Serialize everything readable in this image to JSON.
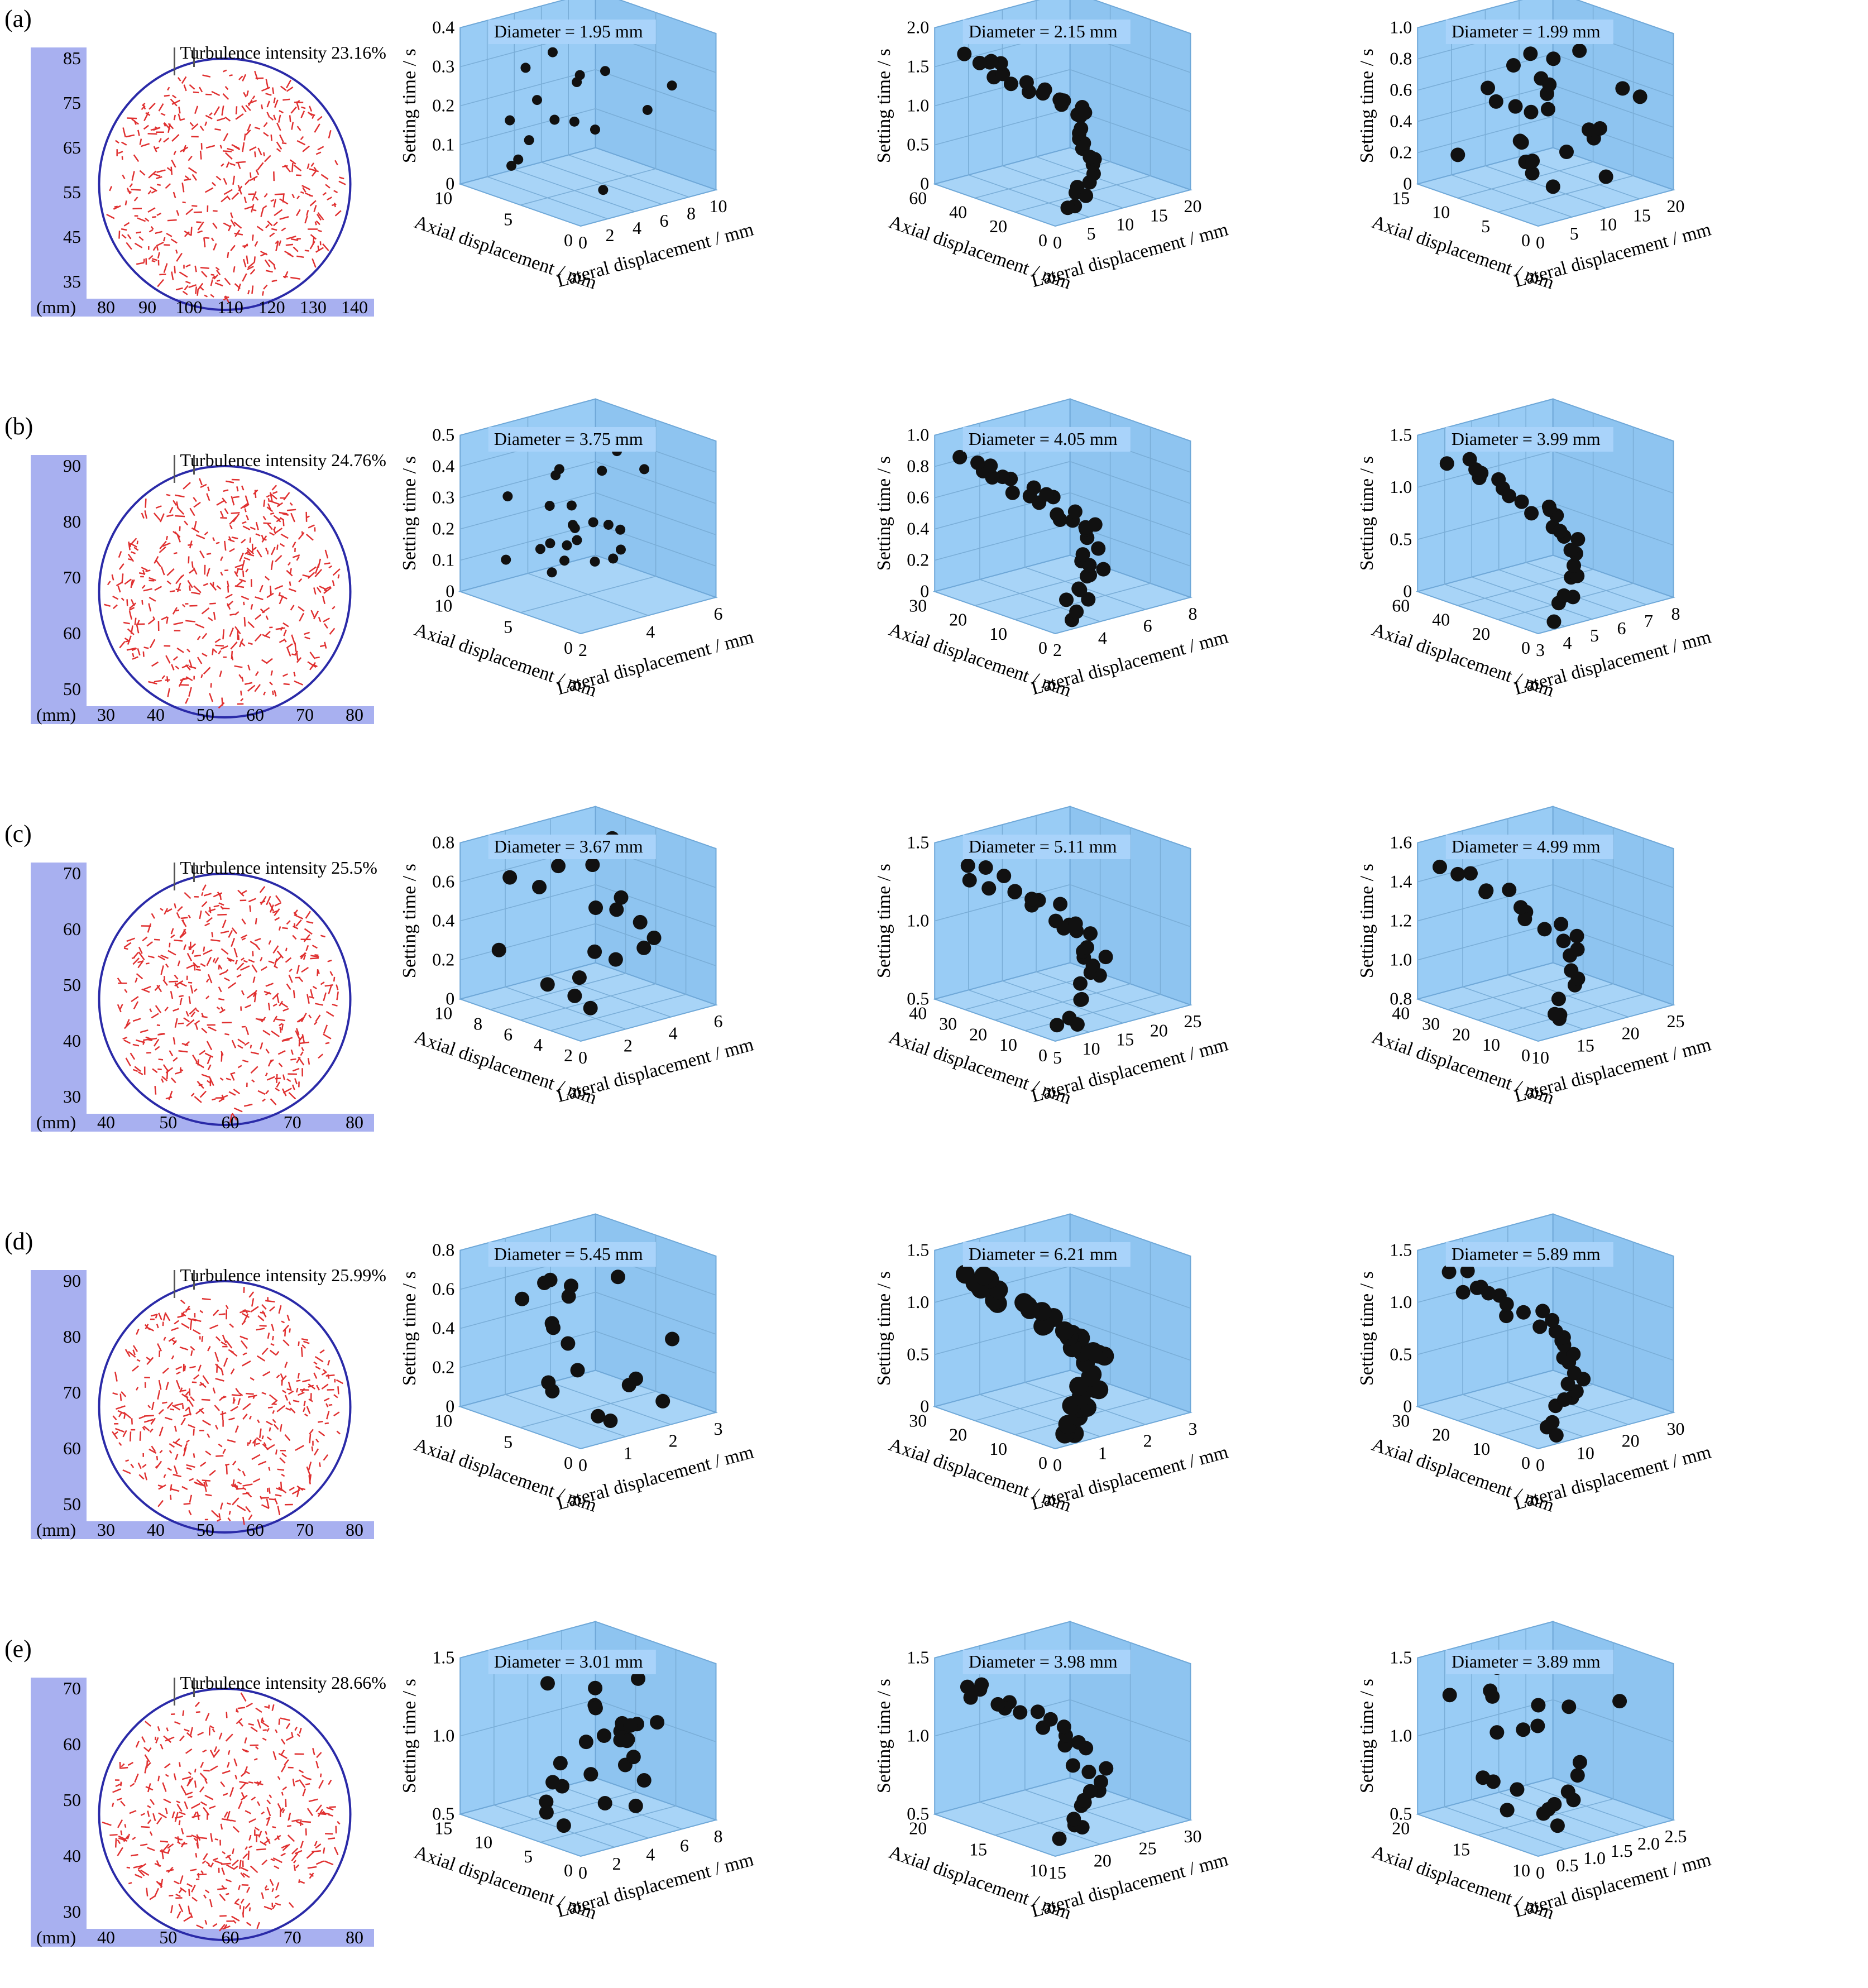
{
  "rows": [
    {
      "label": "(a)",
      "flow_map": {
        "turbulence_label": "Turbulence intensity 23.16%",
        "unit": "(mm)",
        "x_ticks": [
          "80",
          "90",
          "100",
          "110",
          "120",
          "130",
          "140"
        ],
        "y_ticks": [
          "85",
          "75",
          "65",
          "55",
          "45",
          "35"
        ],
        "vector_color": "#e03030",
        "seed": 11
      },
      "plots": [
        {
          "diameter_label": "Diameter = 1.95 mm",
          "z_ticks": [
            "0",
            "0.1",
            "0.2",
            "0.3",
            "0.4"
          ],
          "axial_ticks": [
            "0",
            "5",
            "10"
          ],
          "lateral_ticks": [
            "0",
            "2",
            "4",
            "6",
            "8",
            "10"
          ],
          "point_count": 16,
          "point_size": "small",
          "pattern": "scatter",
          "seed": 101
        },
        {
          "diameter_label": "Diameter = 2.15 mm",
          "z_ticks": [
            "0",
            "0.5",
            "1.0",
            "1.5",
            "2.0"
          ],
          "axial_ticks": [
            "0",
            "20",
            "40",
            "60"
          ],
          "lateral_ticks": [
            "0",
            "5",
            "10",
            "15",
            "20"
          ],
          "point_count": 34,
          "point_size": "medium",
          "pattern": "chain",
          "seed": 102
        },
        {
          "diameter_label": "Diameter = 1.99 mm",
          "z_ticks": [
            "0",
            "0.2",
            "0.4",
            "0.6",
            "0.8",
            "1.0"
          ],
          "axial_ticks": [
            "0",
            "5",
            "10",
            "15"
          ],
          "lateral_ticks": [
            "0",
            "5",
            "10",
            "15",
            "20"
          ],
          "point_count": 28,
          "point_size": "medium",
          "pattern": "scatter",
          "seed": 103
        }
      ]
    },
    {
      "label": "(b)",
      "flow_map": {
        "turbulence_label": "Turbulence intensity 24.76%",
        "unit": "(mm)",
        "x_ticks": [
          "30",
          "40",
          "50",
          "60",
          "70",
          "80"
        ],
        "y_ticks": [
          "90",
          "80",
          "70",
          "60",
          "50"
        ],
        "vector_color": "#e03030",
        "seed": 12
      },
      "plots": [
        {
          "diameter_label": "Diameter = 3.75 mm",
          "z_ticks": [
            "0",
            "0.1",
            "0.2",
            "0.3",
            "0.4",
            "0.5"
          ],
          "axial_ticks": [
            "0",
            "5",
            "10"
          ],
          "lateral_ticks": [
            "2",
            "4",
            "6"
          ],
          "point_count": 24,
          "point_size": "small",
          "pattern": "scatter",
          "seed": 201
        },
        {
          "diameter_label": "Diameter = 4.05 mm",
          "z_ticks": [
            "0",
            "0.2",
            "0.4",
            "0.6",
            "0.8",
            "1.0"
          ],
          "axial_ticks": [
            "0",
            "10",
            "20",
            "30"
          ],
          "lateral_ticks": [
            "2",
            "4",
            "6",
            "8"
          ],
          "point_count": 34,
          "point_size": "medium",
          "pattern": "chain",
          "seed": 202
        },
        {
          "diameter_label": "Diameter = 3.99 mm",
          "z_ticks": [
            "0",
            "0.5",
            "1.0",
            "1.5"
          ],
          "axial_ticks": [
            "0",
            "20",
            "40",
            "60"
          ],
          "lateral_ticks": [
            "3",
            "4",
            "5",
            "6",
            "7",
            "8"
          ],
          "point_count": 26,
          "point_size": "medium",
          "pattern": "chain",
          "seed": 203
        }
      ]
    },
    {
      "label": "(c)",
      "flow_map": {
        "turbulence_label": "Turbulence intensity 25.5%",
        "unit": "(mm)",
        "x_ticks": [
          "40",
          "50",
          "60",
          "70",
          "80"
        ],
        "y_ticks": [
          "70",
          "60",
          "50",
          "40",
          "30"
        ],
        "vector_color": "#e03030",
        "seed": 13
      },
      "plots": [
        {
          "diameter_label": "Diameter = 3.67 mm",
          "z_ticks": [
            "0",
            "0.2",
            "0.4",
            "0.6",
            "0.8"
          ],
          "axial_ticks": [
            "2",
            "4",
            "6",
            "8",
            "10"
          ],
          "lateral_ticks": [
            "0",
            "2",
            "4",
            "6"
          ],
          "point_count": 18,
          "point_size": "medium",
          "pattern": "scatter",
          "seed": 301
        },
        {
          "diameter_label": "Diameter = 5.11 mm",
          "z_ticks": [
            "0.5",
            "1.0",
            "1.5"
          ],
          "axial_ticks": [
            "0",
            "10",
            "20",
            "30",
            "40"
          ],
          "lateral_ticks": [
            "5",
            "10",
            "15",
            "20",
            "25"
          ],
          "point_count": 30,
          "point_size": "medium",
          "pattern": "chain",
          "seed": 302
        },
        {
          "diameter_label": "Diameter = 4.99 mm",
          "z_ticks": [
            "0.8",
            "1.0",
            "1.2",
            "1.4",
            "1.6"
          ],
          "axial_ticks": [
            "0",
            "10",
            "20",
            "30",
            "40"
          ],
          "lateral_ticks": [
            "10",
            "15",
            "20",
            "25"
          ],
          "point_count": 22,
          "point_size": "medium",
          "pattern": "chain",
          "seed": 303
        }
      ]
    },
    {
      "label": "(d)",
      "flow_map": {
        "turbulence_label": "Turbulence intensity 25.99%",
        "unit": "(mm)",
        "x_ticks": [
          "30",
          "40",
          "50",
          "60",
          "70",
          "80"
        ],
        "y_ticks": [
          "90",
          "80",
          "70",
          "60",
          "50"
        ],
        "vector_color": "#e03030",
        "seed": 14
      },
      "plots": [
        {
          "diameter_label": "Diameter = 5.45 mm",
          "z_ticks": [
            "0",
            "0.2",
            "0.4",
            "0.6",
            "0.8"
          ],
          "axial_ticks": [
            "0",
            "5",
            "10"
          ],
          "lateral_ticks": [
            "0",
            "1",
            "2",
            "3"
          ],
          "point_count": 20,
          "point_size": "medium",
          "pattern": "scatter",
          "seed": 401
        },
        {
          "diameter_label": "Diameter = 6.21 mm",
          "z_ticks": [
            "0",
            "0.5",
            "1.0",
            "1.5"
          ],
          "axial_ticks": [
            "0",
            "10",
            "20",
            "30"
          ],
          "lateral_ticks": [
            "0",
            "1",
            "2",
            "3"
          ],
          "point_count": 40,
          "point_size": "large",
          "pattern": "chain",
          "seed": 402
        },
        {
          "diameter_label": "Diameter = 5.89 mm",
          "z_ticks": [
            "0",
            "0.5",
            "1.0",
            "1.5"
          ],
          "axial_ticks": [
            "0",
            "10",
            "20",
            "30"
          ],
          "lateral_ticks": [
            "0",
            "10",
            "20",
            "30"
          ],
          "point_count": 30,
          "point_size": "medium",
          "pattern": "chain",
          "seed": 403
        }
      ]
    },
    {
      "label": "(e)",
      "flow_map": {
        "turbulence_label": "Turbulence intensity 28.66%",
        "unit": "(mm)",
        "x_ticks": [
          "40",
          "50",
          "60",
          "70",
          "80"
        ],
        "y_ticks": [
          "70",
          "60",
          "50",
          "40",
          "30"
        ],
        "vector_color": "#e03030",
        "seed": 15
      },
      "plots": [
        {
          "diameter_label": "Diameter = 3.01 mm",
          "z_ticks": [
            "0.5",
            "1.0",
            "1.5"
          ],
          "axial_ticks": [
            "0",
            "5",
            "10",
            "15"
          ],
          "lateral_ticks": [
            "0",
            "2",
            "4",
            "6",
            "8"
          ],
          "point_count": 28,
          "point_size": "medium",
          "pattern": "scatter",
          "seed": 501
        },
        {
          "diameter_label": "Diameter = 3.98 mm",
          "z_ticks": [
            "0.5",
            "1.0",
            "1.5"
          ],
          "axial_ticks": [
            "10",
            "15",
            "20"
          ],
          "lateral_ticks": [
            "15",
            "20",
            "25",
            "30"
          ],
          "point_count": 30,
          "point_size": "medium",
          "pattern": "chain",
          "seed": 502
        },
        {
          "diameter_label": "Diameter = 3.89 mm",
          "z_ticks": [
            "0.5",
            "1.0",
            "1.5"
          ],
          "axial_ticks": [
            "10",
            "15",
            "20"
          ],
          "lateral_ticks": [
            "0",
            "0.5",
            "1.0",
            "1.5",
            "2.0",
            "2.5"
          ],
          "point_count": 22,
          "point_size": "medium",
          "pattern": "scatter",
          "seed": 503
        }
      ]
    }
  ],
  "axis_labels": {
    "z": "Setting time / s",
    "axial": "Axial displacement / mm",
    "lateral": "Lateral displacement / mm"
  },
  "colors": {
    "box_fill": "#99ccf5",
    "box_face_left": "#8ec4f0",
    "box_face_floor": "#a8d4f7",
    "box_edge": "#6fa8d8",
    "grid": "#7aaed8",
    "point": "#111111",
    "label_bg": "#a9d3fa",
    "axis_bar": "#a8b0f0",
    "circle": "#2a2aa8"
  }
}
